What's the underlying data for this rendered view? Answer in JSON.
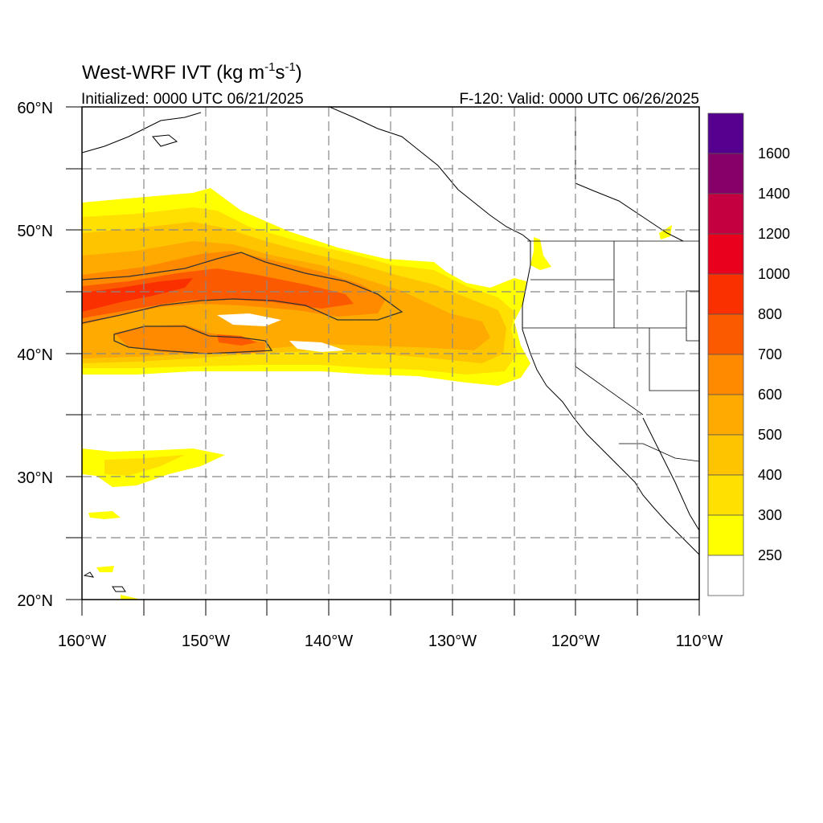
{
  "header": {
    "title": "West-WRF IVT (kg m",
    "title_sup1": "-1",
    "title_mid": "s",
    "title_sup2": "-1",
    "title_end": ")",
    "initialized": "Initialized: 0000 UTC 06/21/2025",
    "valid": "F-120: Valid: 0000 UTC 06/26/2025"
  },
  "map": {
    "lon_range": [
      -160,
      -110
    ],
    "lat_range": [
      20,
      60
    ],
    "lat_labels": [
      "60°N",
      "50°N",
      "40°N",
      "30°N",
      "20°N"
    ],
    "lon_labels": [
      "160°W",
      "150°W",
      "140°W",
      "130°W",
      "120°W",
      "110°W"
    ],
    "grid": "dashed, every 5°",
    "units": "kg m-1 s-1"
  },
  "colorbar": {
    "levels": [
      "1600",
      "1400",
      "1200",
      "1000",
      "800",
      "700",
      "600",
      "500",
      "400",
      "300",
      "250"
    ],
    "colors_top_to_bottom": [
      "#560090",
      "#850068",
      "#c40040",
      "#e8001c",
      "#fa3000",
      "#fc5a00",
      "#ff8a00",
      "#ffaa00",
      "#ffc400",
      "#ffe000",
      "#ffff00",
      "#ffffff"
    ]
  }
}
